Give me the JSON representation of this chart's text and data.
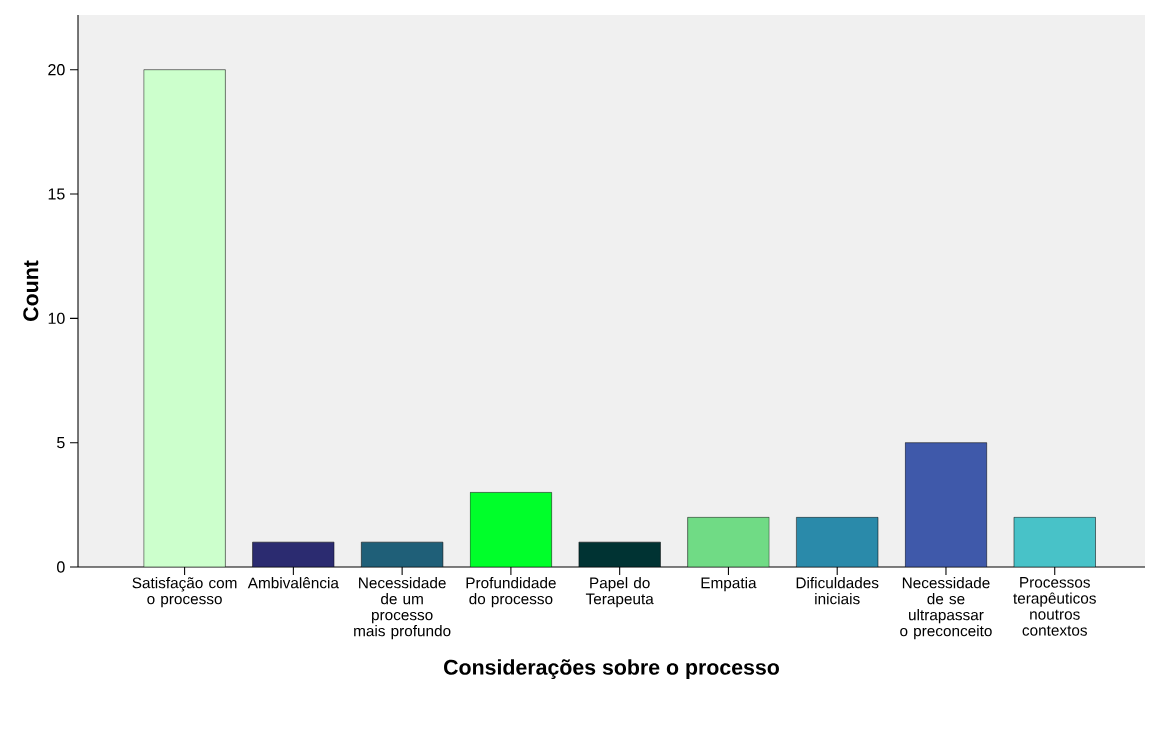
{
  "chart_data": {
    "type": "bar",
    "xlabel": "Considerações sobre o processo",
    "ylabel": "Count",
    "categories": [
      "Satisfação com o processo",
      "Ambivalência",
      "Necessidade de um processo mais profundo",
      "Profundidade do processo",
      "Papel do Terapeuta",
      "Empatia",
      "Dificuldades iniciais",
      "Necessidade de se ultrapassar o preconceito",
      "Processos terapêuticos noutros contextos"
    ],
    "values": [
      20,
      1,
      1,
      3,
      1,
      2,
      2,
      5,
      2
    ],
    "colors": [
      "#ccffcc",
      "#2b2b70",
      "#1f5f78",
      "#00ff2a",
      "#003333",
      "#70db85",
      "#2a8aaa",
      "#3f59aa",
      "#48c2c8"
    ],
    "ylim": [
      0,
      22.2
    ],
    "yticks": [
      0,
      5,
      10,
      15,
      20
    ]
  }
}
